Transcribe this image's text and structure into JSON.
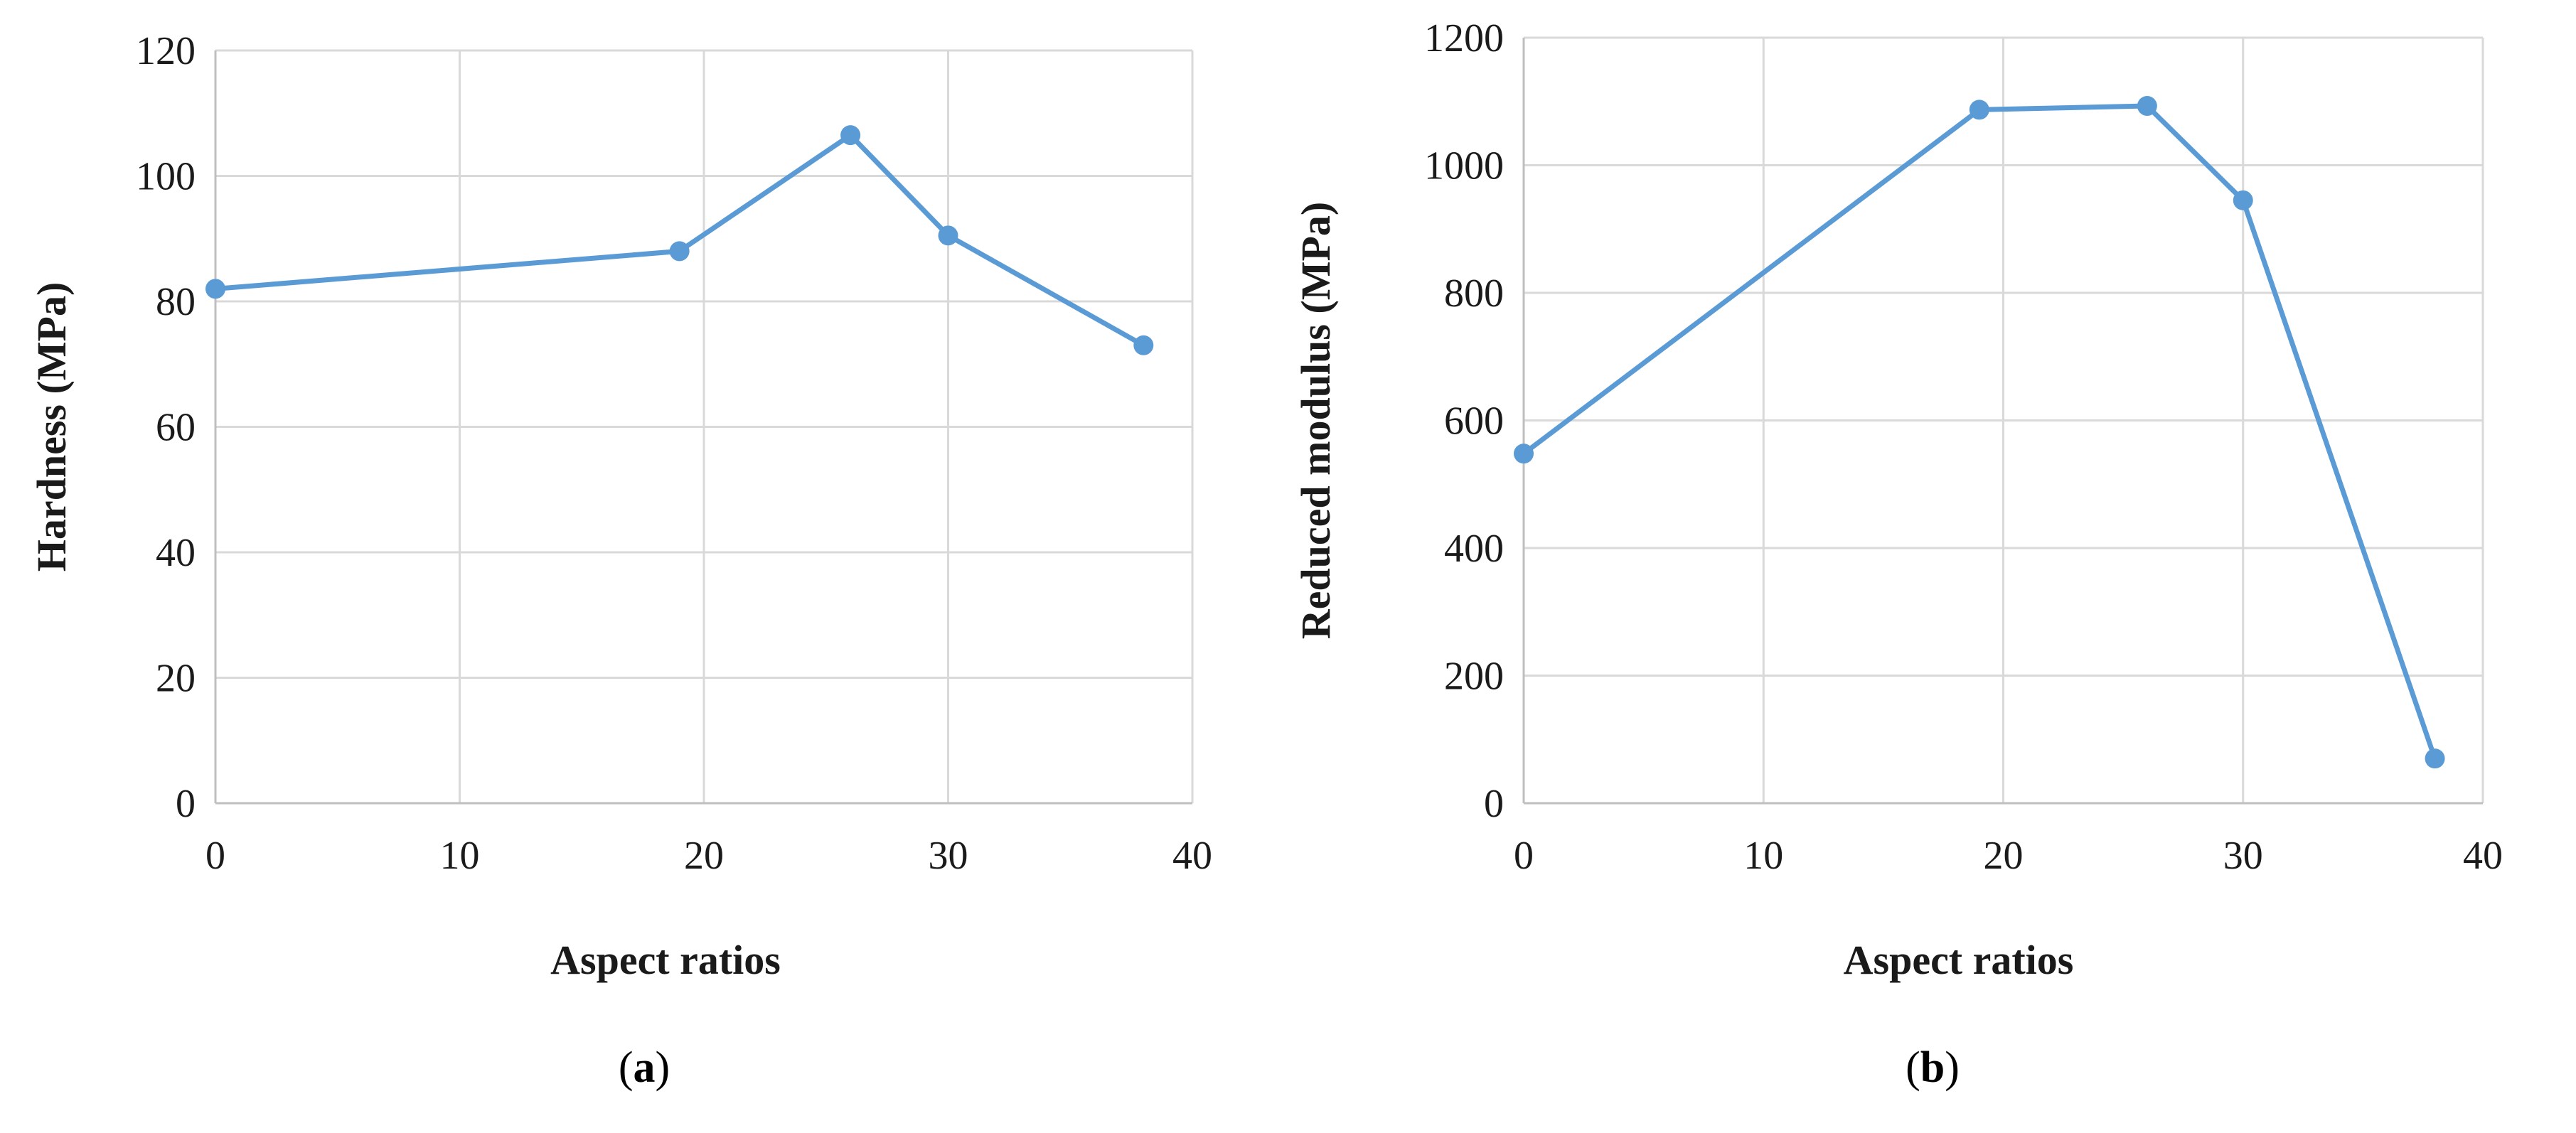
{
  "chart_data": [
    {
      "type": "line",
      "xlabel": "Aspect ratios",
      "ylabel": "Hardness (MPa)",
      "xlim": [
        0,
        40
      ],
      "ylim": [
        0,
        120
      ],
      "xticks": [
        0,
        10,
        20,
        30,
        40
      ],
      "yticks": [
        0,
        20,
        40,
        60,
        80,
        100,
        120
      ],
      "grid": true,
      "legend": "none",
      "color": "#5b9bd5",
      "series": [
        {
          "x": [
            0,
            19,
            26,
            30,
            38
          ],
          "y": [
            82,
            88,
            106.5,
            90.5,
            73
          ]
        }
      ],
      "panel_label": "a"
    },
    {
      "type": "line",
      "xlabel": "Aspect ratios",
      "ylabel": "Reduced modulus (MPa)",
      "xlim": [
        0,
        40
      ],
      "ylim": [
        0,
        1200
      ],
      "xticks": [
        0,
        10,
        20,
        30,
        40
      ],
      "yticks": [
        0,
        200,
        400,
        600,
        800,
        1000,
        1200
      ],
      "grid": true,
      "legend": "none",
      "color": "#5b9bd5",
      "series": [
        {
          "x": [
            0,
            19,
            26,
            30,
            38
          ],
          "y": [
            548,
            1087,
            1093,
            945,
            70
          ]
        }
      ],
      "panel_label": "b"
    }
  ]
}
